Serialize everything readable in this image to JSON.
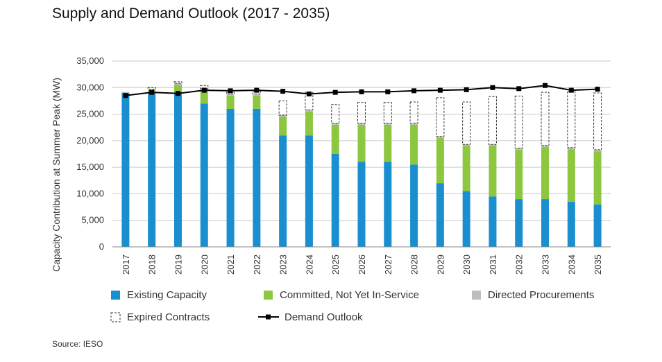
{
  "title": "Supply and Demand Outlook (2017 - 2035)",
  "source": "Source: IESO",
  "chart_data": {
    "type": "bar",
    "title": "Supply and Demand Outlook (2017 - 2035)",
    "ylabel": "Capacity Contribution at Summer Peak (MW)",
    "xlabel": "",
    "ylim": [
      0,
      35000
    ],
    "yticks": [
      0,
      5000,
      10000,
      15000,
      20000,
      25000,
      30000,
      35000
    ],
    "ytick_labels": [
      "0",
      "5,000",
      "10,000",
      "15,000",
      "20,000",
      "25,000",
      "30,000",
      "35,000"
    ],
    "categories": [
      "2017",
      "2018",
      "2019",
      "2020",
      "2021",
      "2022",
      "2023",
      "2024",
      "2025",
      "2026",
      "2027",
      "2028",
      "2029",
      "2030",
      "2031",
      "2032",
      "2033",
      "2034",
      "2035"
    ],
    "series": [
      {
        "name": "Existing Capacity",
        "kind": "stack",
        "color": "#1a8fd0",
        "values": [
          29000,
          29000,
          29000,
          27000,
          26000,
          26000,
          21000,
          21000,
          17500,
          16000,
          16000,
          15500,
          12000,
          10500,
          9500,
          9000,
          9000,
          8500,
          8000
        ]
      },
      {
        "name": "Committed, Not Yet In-Service",
        "kind": "stack",
        "color": "#8dc63f",
        "values": [
          0,
          500,
          1500,
          2500,
          2500,
          2500,
          3500,
          4500,
          5500,
          7000,
          7000,
          7500,
          8500,
          8500,
          9500,
          9300,
          9800,
          9900,
          10000
        ]
      },
      {
        "name": "Directed Procurements",
        "kind": "stack",
        "color": "#bcbec0",
        "values": [
          200,
          200,
          300,
          300,
          300,
          300,
          300,
          300,
          300,
          300,
          300,
          300,
          300,
          300,
          300,
          300,
          300,
          300,
          300
        ]
      },
      {
        "name": "Expired Contracts",
        "kind": "outline",
        "color": "#333333",
        "values": [
          0,
          300,
          300,
          600,
          300,
          500,
          2700,
          3300,
          3500,
          3900,
          3900,
          4000,
          7300,
          8000,
          9000,
          9800,
          10000,
          10500,
          10700
        ]
      },
      {
        "name": "Demand Outlook",
        "kind": "line",
        "color": "#000000",
        "values": [
          28500,
          29100,
          28900,
          29500,
          29400,
          29500,
          29300,
          28800,
          29100,
          29200,
          29200,
          29400,
          29500,
          29600,
          30000,
          29800,
          30400,
          29500,
          29700
        ]
      }
    ],
    "legend": {
      "position": "bottom",
      "columns": 3
    },
    "grid": {
      "y": true,
      "x": false
    }
  }
}
